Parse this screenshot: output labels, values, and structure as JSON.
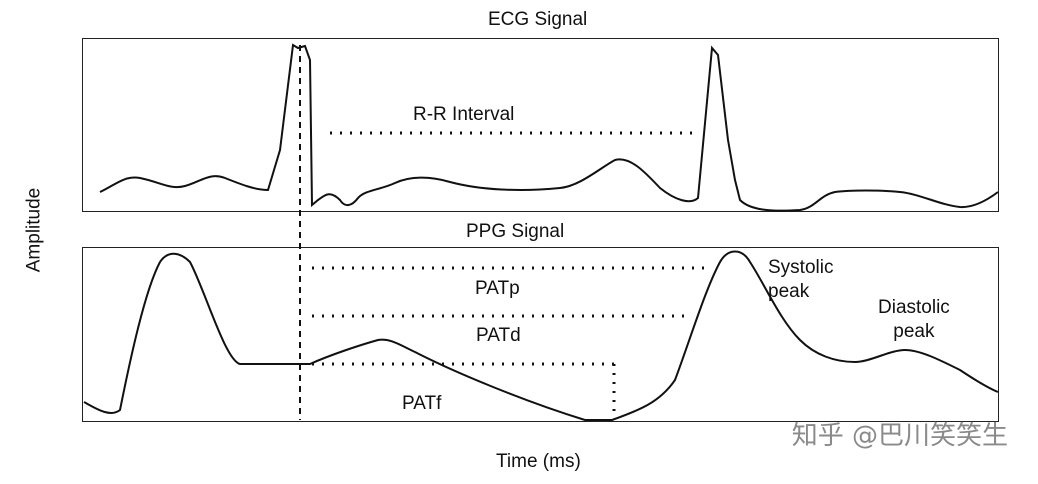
{
  "ecg": {
    "title": "ECG Signal",
    "rr_label": "R-R Interval"
  },
  "ppg": {
    "title": "PPG Signal",
    "patp": "PATp",
    "patd": "PATd",
    "patf": "PATf",
    "systolic": "Systolic\npeak",
    "diastolic": "Diastolic\npeak"
  },
  "axes": {
    "ylabel": "Amplitude",
    "xlabel": "Time (ms)"
  },
  "watermark": "知乎 @巴川笑笑生"
}
